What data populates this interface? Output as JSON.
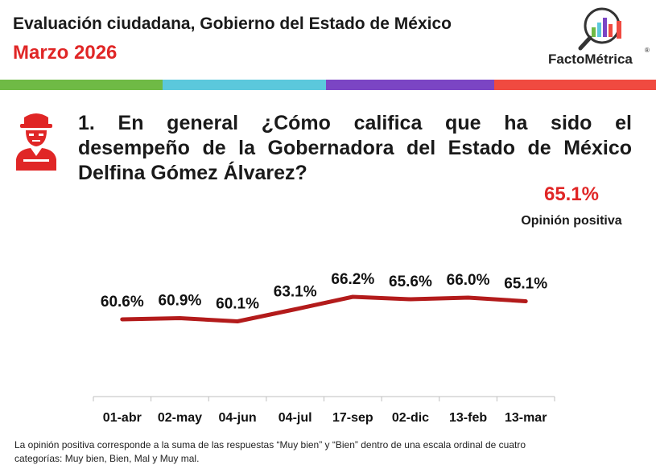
{
  "header": {
    "title": "Evaluación ciudadana, Gobierno del Estado de México",
    "date": "Marzo 2026"
  },
  "brand": {
    "name": "FactoMétrica",
    "registered_mark": "®"
  },
  "colors": {
    "accent_red": "#e02626",
    "line_red": "#b31b1b",
    "band": [
      "#6fba45",
      "#5bc8dc",
      "#7b45c4",
      "#f04a40"
    ],
    "axis": "#bfbfbf"
  },
  "question": {
    "lines": [
      "1. En general ¿Cómo califica que ha sido el",
      "desempeño de la Gobernadora del Estado de México",
      "Delfina Gómez Álvarez?"
    ]
  },
  "kpi": {
    "value": "65.1%",
    "label": "Opinión positiva"
  },
  "chart_data": {
    "type": "line",
    "categories": [
      "01-abr",
      "02-may",
      "04-jun",
      "04-jul",
      "17-sep",
      "02-dic",
      "13-feb",
      "13-mar"
    ],
    "values": [
      60.6,
      60.9,
      60.1,
      63.1,
      66.2,
      65.6,
      66.0,
      65.1
    ],
    "data_labels": [
      "60.6%",
      "60.9%",
      "60.1%",
      "63.1%",
      "66.2%",
      "65.6%",
      "66.0%",
      "65.1%"
    ],
    "ylim": [
      40,
      80
    ],
    "grid": false,
    "legend": "none"
  },
  "footnote": [
    "La opinión positiva corresponde a la suma de las respuestas “Muy bien” y “Bien” dentro de una escala ordinal de cuatro",
    "categorías: Muy bien, Bien, Mal y Muy mal."
  ]
}
